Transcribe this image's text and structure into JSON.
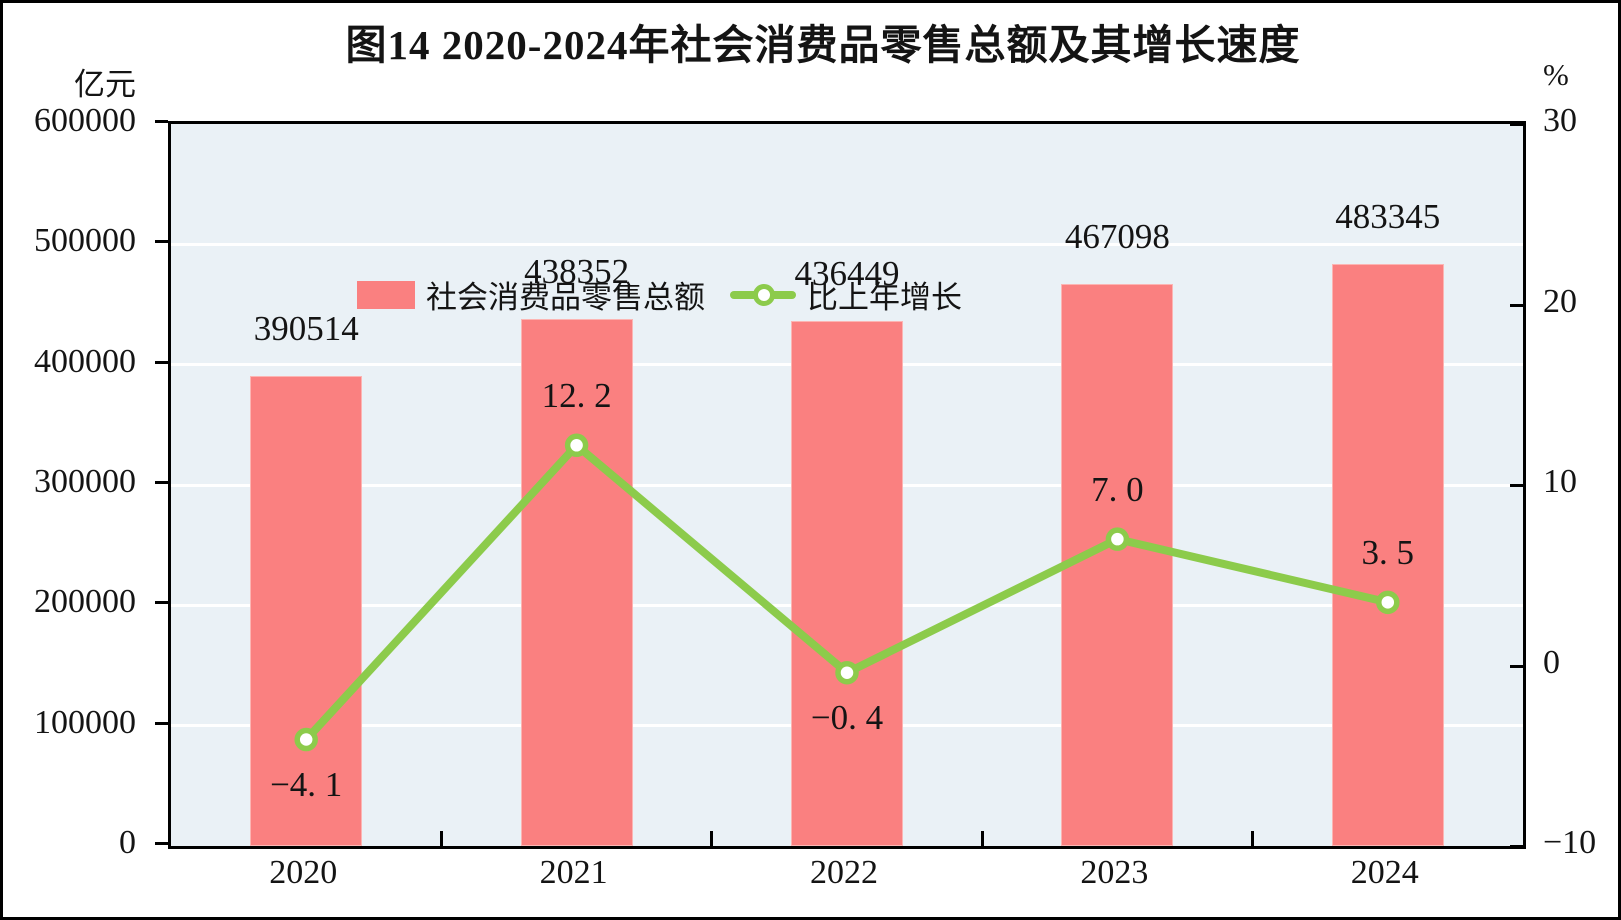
{
  "figure": {
    "title": "图14  2020-2024年社会消费品零售总额及其增长速度",
    "left_axis_unit": "亿元",
    "right_axis_unit": "%"
  },
  "chart_data": {
    "type": "bar+line",
    "categories": [
      "2020",
      "2021",
      "2022",
      "2023",
      "2024"
    ],
    "series": [
      {
        "name": "社会消费品零售总额",
        "type": "bar",
        "axis": "left",
        "color": "#FA8080",
        "values": [
          390514,
          438352,
          436449,
          467098,
          483345
        ],
        "labels": [
          "390514",
          "438352",
          "436449",
          "467098",
          "483345"
        ]
      },
      {
        "name": "比上年增长",
        "type": "line",
        "axis": "right",
        "color": "#8CCB4B",
        "marker": "circle-white-fill",
        "values": [
          -4.1,
          12.2,
          -0.4,
          7.0,
          3.5
        ],
        "labels": [
          "−4. 1",
          "12. 2",
          "−0. 4",
          "7. 0",
          "3. 5"
        ],
        "label_positions": [
          "below",
          "above",
          "below",
          "above",
          "above"
        ]
      }
    ],
    "left_axis": {
      "min": 0,
      "max": 600000,
      "step": 100000,
      "ticks": [
        {
          "v": 0,
          "label": "0"
        },
        {
          "v": 100000,
          "label": "100000"
        },
        {
          "v": 200000,
          "label": "200000"
        },
        {
          "v": 300000,
          "label": "300000"
        },
        {
          "v": 400000,
          "label": "400000"
        },
        {
          "v": 500000,
          "label": "500000"
        },
        {
          "v": 600000,
          "label": "600000"
        }
      ]
    },
    "right_axis": {
      "min": -10,
      "max": 30,
      "step": 10,
      "ticks": [
        {
          "v": -10,
          "label": "−10"
        },
        {
          "v": 0,
          "label": "0"
        },
        {
          "v": 10,
          "label": "10"
        },
        {
          "v": 20,
          "label": "20"
        },
        {
          "v": 30,
          "label": "30"
        }
      ]
    },
    "grid": {
      "color": "#FFFFFF",
      "lines_at": [
        100000,
        200000,
        300000,
        400000,
        500000
      ]
    },
    "plot_background": "#EAF1F6",
    "legend_position": "top-left"
  }
}
